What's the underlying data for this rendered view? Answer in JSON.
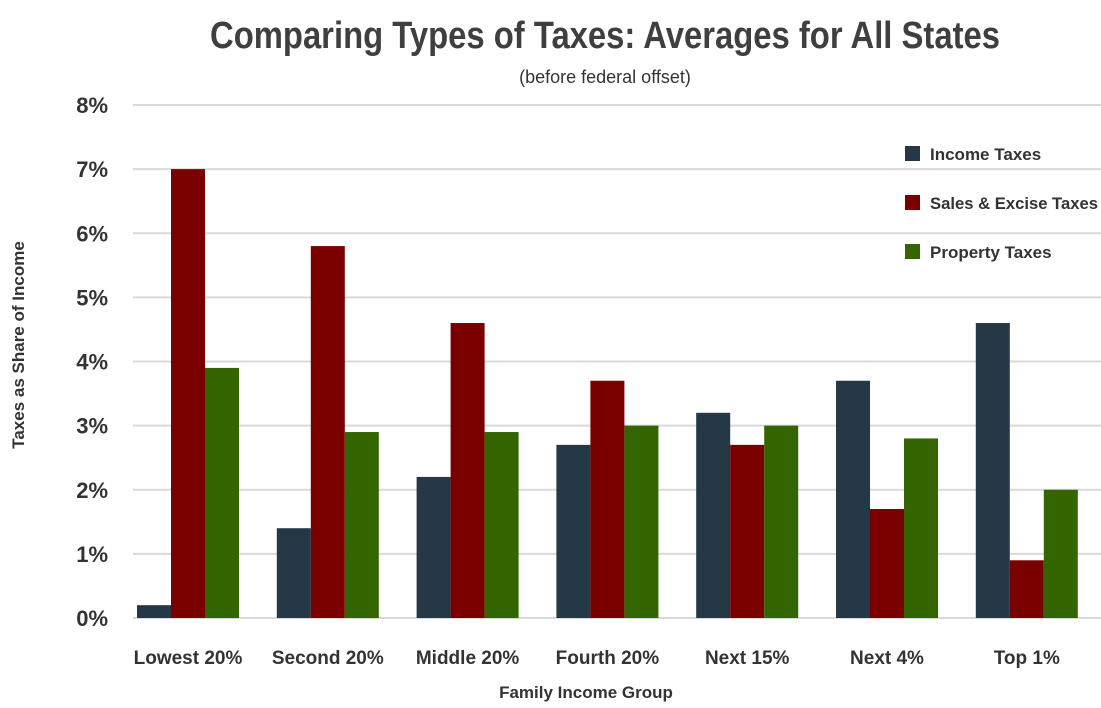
{
  "chart_data": {
    "type": "bar",
    "title": "Comparing Types of Taxes: Averages for All States",
    "subtitle": "(before federal offset)",
    "xlabel": "Family Income Group",
    "ylabel": "Taxes as Share of Income",
    "categories": [
      "Lowest 20%",
      "Second 20%",
      "Middle 20%",
      "Fourth 20%",
      "Next 15%",
      "Next 4%",
      "Top 1%"
    ],
    "series": [
      {
        "name": "Income Taxes",
        "color": "#243845",
        "values": [
          0.2,
          1.4,
          2.2,
          2.7,
          3.2,
          3.7,
          4.6
        ]
      },
      {
        "name": "Sales & Excise Taxes",
        "color": "#7a0000",
        "values": [
          7.0,
          5.8,
          4.6,
          3.7,
          2.7,
          1.7,
          0.9
        ]
      },
      {
        "name": "Property Taxes",
        "color": "#336600",
        "values": [
          3.9,
          2.9,
          2.9,
          3.0,
          3.0,
          2.8,
          2.0
        ]
      }
    ],
    "ylim": [
      0,
      8
    ],
    "yticks": [
      0,
      1,
      2,
      3,
      4,
      5,
      6,
      7,
      8
    ],
    "ytick_labels": [
      "0%",
      "1%",
      "2%",
      "3%",
      "4%",
      "5%",
      "6%",
      "7%",
      "8%"
    ],
    "grid": true,
    "legend_position": "top-right"
  }
}
